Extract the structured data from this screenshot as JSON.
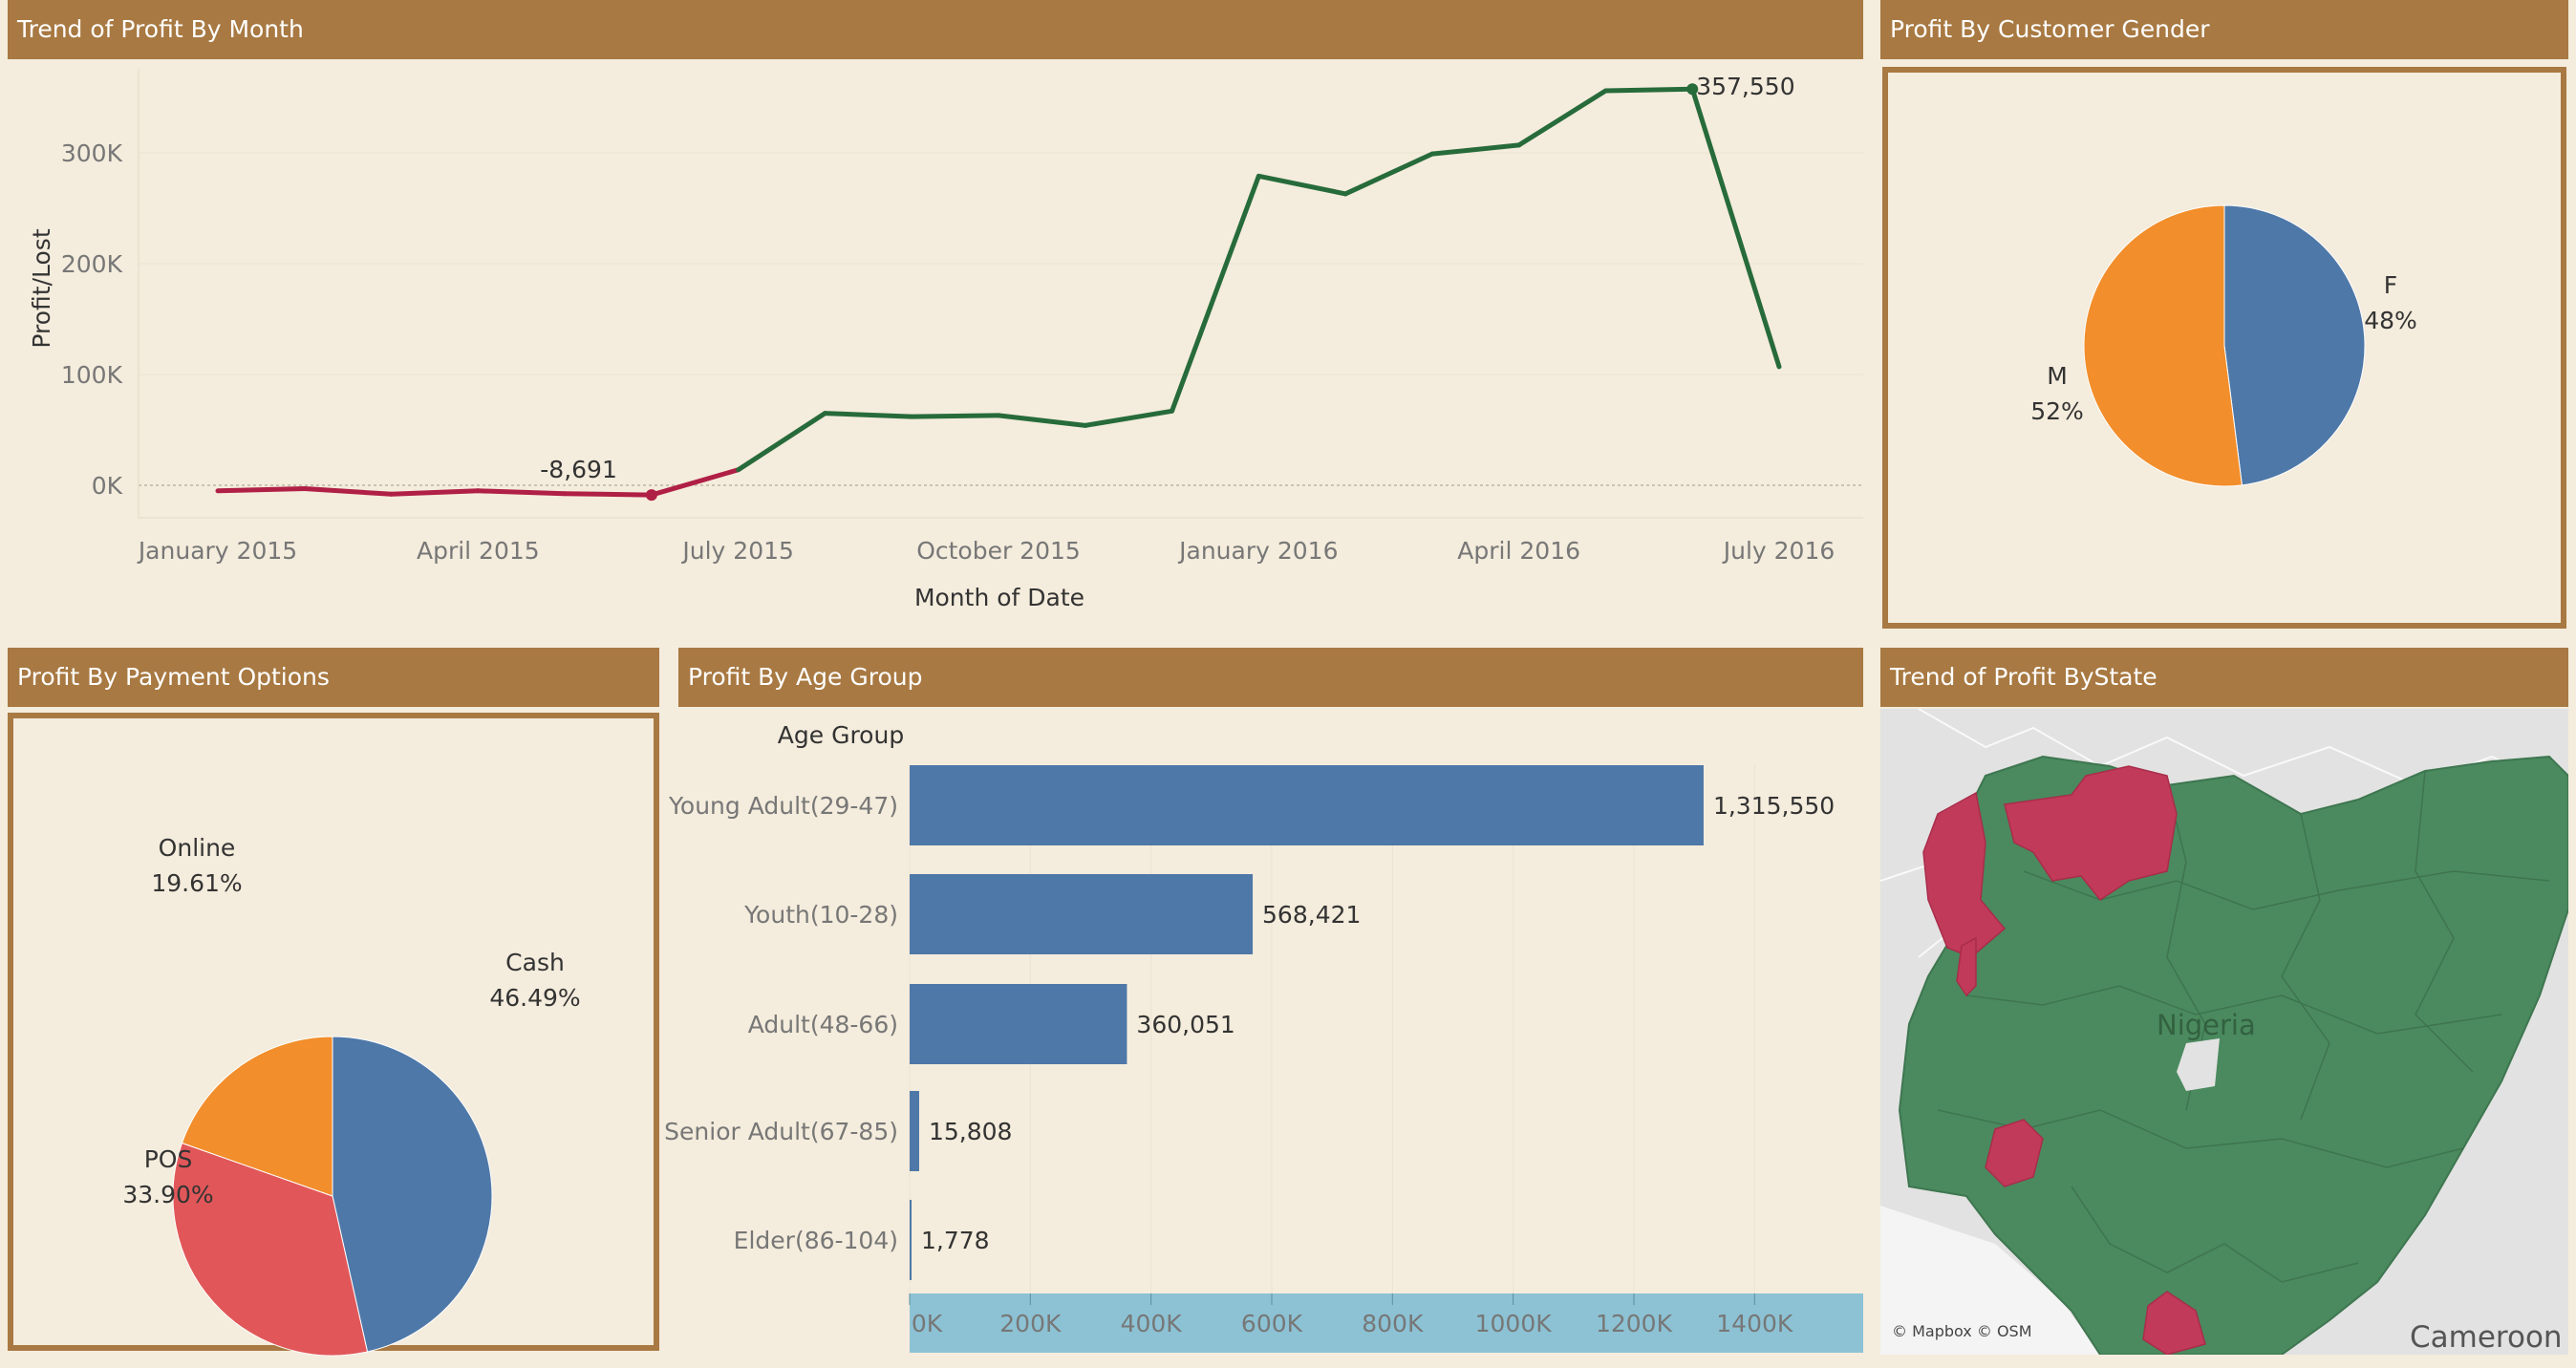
{
  "panels": {
    "trend_title": "Trend of Profit By Month",
    "gender_title": "Profit By Customer Gender",
    "payment_title": "Profit By Payment Options",
    "age_title": "Profit By Age Group",
    "state_title": "Trend of Profit ByState"
  },
  "map": {
    "country_label": "Nigeria",
    "neighbor_label": "Cameroon",
    "attribution": "© Mapbox © OSM",
    "colors": {
      "profit": "#4a8a5e",
      "loss": "#c23a5a",
      "land": "#dcdcdc",
      "water": "#f2f2f2"
    }
  },
  "chart_data": [
    {
      "type": "line",
      "title": "Trend of Profit By Month",
      "xlabel": "Month of Date",
      "ylabel": "Profit/Lost",
      "x": [
        "2015-01",
        "2015-02",
        "2015-03",
        "2015-04",
        "2015-05",
        "2015-06",
        "2015-07",
        "2015-08",
        "2015-09",
        "2015-10",
        "2015-11",
        "2015-12",
        "2016-01",
        "2016-02",
        "2016-03",
        "2016-04",
        "2016-05",
        "2016-06",
        "2016-07"
      ],
      "values": [
        -5000,
        -3000,
        -8000,
        -5000,
        -7500,
        -8691,
        14000,
        65000,
        62000,
        63000,
        54000,
        67000,
        279000,
        263000,
        299000,
        307000,
        356000,
        357550,
        107000
      ],
      "xtick_labels": [
        "January 2015",
        "April 2015",
        "July 2015",
        "October 2015",
        "January 2016",
        "April 2016",
        "July 2016"
      ],
      "ytick_labels": [
        "0K",
        "100K",
        "200K",
        "300K"
      ],
      "yticks": [
        0,
        100000,
        200000,
        300000
      ],
      "ylim": [
        -28000,
        370000
      ],
      "annotations": [
        {
          "x": "2015-06",
          "label": "-8,691"
        },
        {
          "x": "2016-06",
          "label": "357,550"
        }
      ],
      "colors": {
        "positive": "#276b3b",
        "negative": "#b01f45"
      },
      "grid": true
    },
    {
      "type": "pie",
      "title": "Profit By Customer Gender",
      "labels": [
        "F",
        "M"
      ],
      "values": [
        48,
        52
      ],
      "pct_labels": [
        "48%",
        "52%"
      ],
      "colors": [
        "#4e78a8",
        "#f28e2b"
      ]
    },
    {
      "type": "pie",
      "title": "Profit By Payment Options",
      "labels": [
        "Cash",
        "POS",
        "Online"
      ],
      "values": [
        46.49,
        33.9,
        19.61
      ],
      "pct_labels": [
        "46.49%",
        "33.90%",
        "19.61%"
      ],
      "colors": [
        "#4e78a8",
        "#e15759",
        "#f28e2b"
      ]
    },
    {
      "type": "bar",
      "orientation": "horizontal",
      "title": "Profit By Age Group",
      "ylabel": "Age Group",
      "categories": [
        "Young Adult(29-47)",
        "Youth(10-28)",
        "Adult(48-66)",
        "Senior Adult(67-85)",
        "Elder(86-104)"
      ],
      "values": [
        1315550,
        568421,
        360051,
        15808,
        1778
      ],
      "value_labels": [
        "1,315,550",
        "568,421",
        "360,051",
        "15,808",
        "1,778"
      ],
      "xtick_labels": [
        "0K",
        "200K",
        "400K",
        "600K",
        "800K",
        "1000K",
        "1200K",
        "1400K"
      ],
      "xticks": [
        0,
        200000,
        400000,
        600000,
        800000,
        1000000,
        1200000,
        1400000
      ],
      "xlim": [
        0,
        1580000
      ],
      "colors": {
        "bar": "#4e78a8",
        "axis_band": "#8cc2d4"
      },
      "grid": true
    }
  ]
}
